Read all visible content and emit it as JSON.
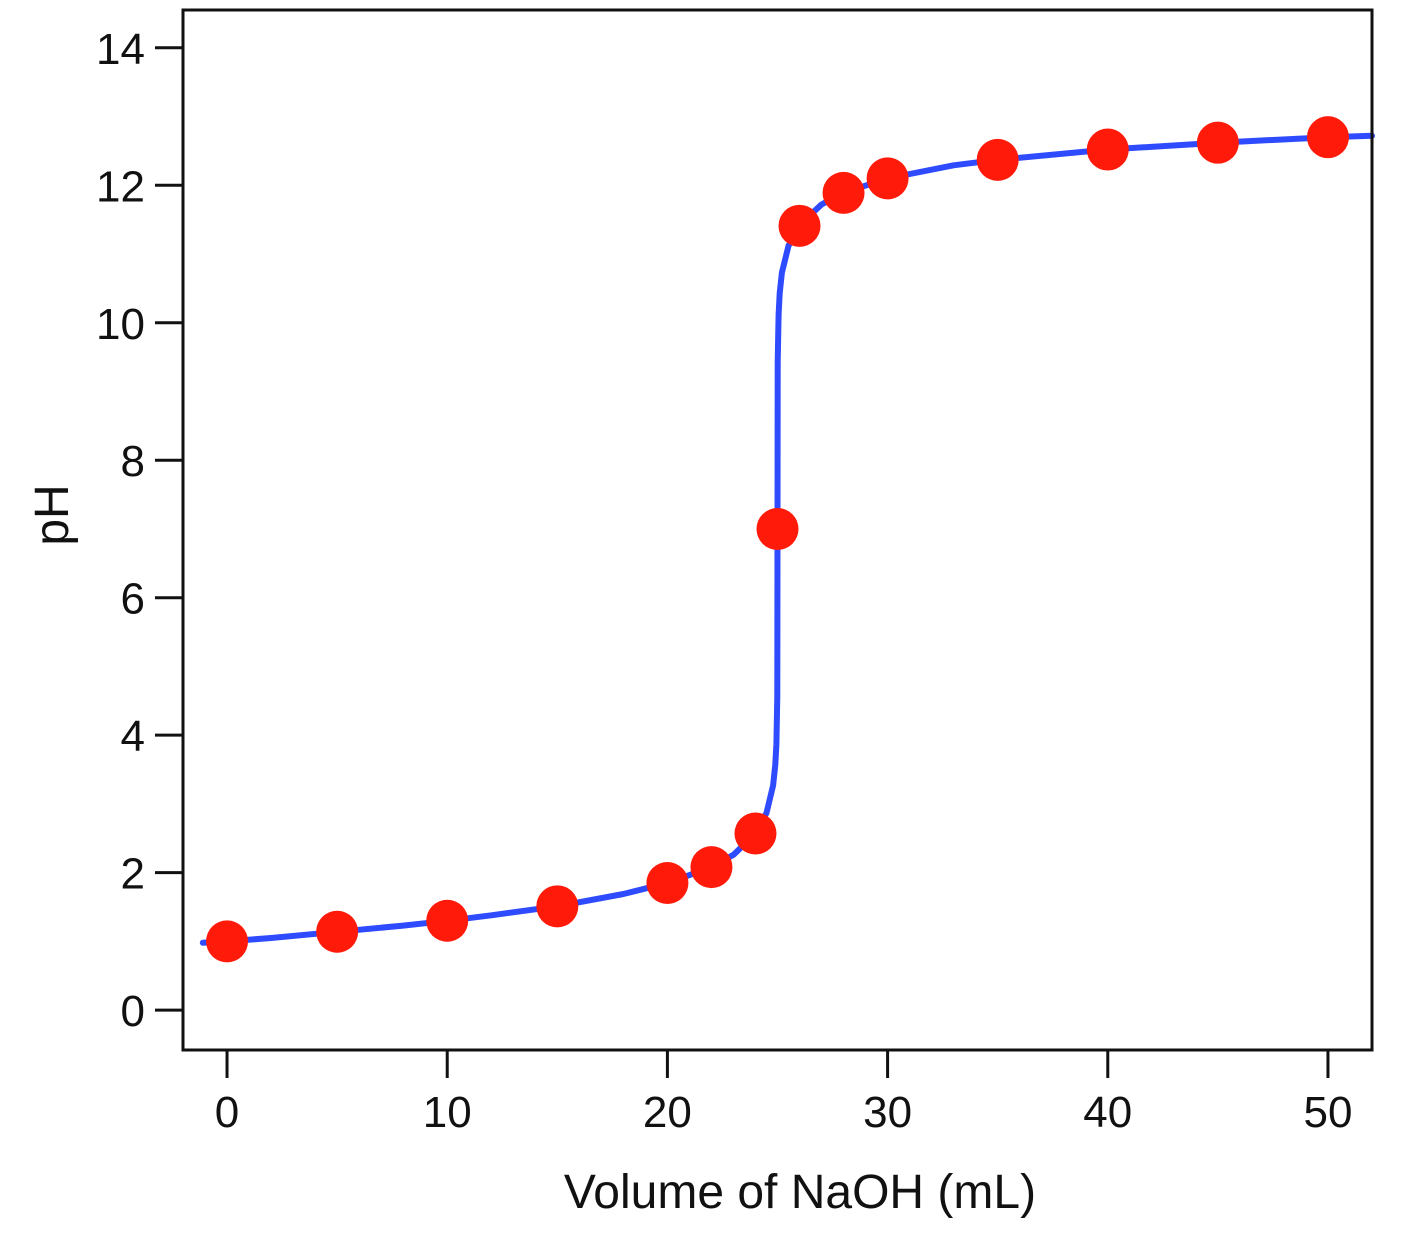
{
  "chart_data": {
    "type": "scatter",
    "title": "",
    "xlabel": "Volume of NaOH (mL)",
    "ylabel": "pH",
    "xlim": [
      -2,
      52
    ],
    "ylim": [
      -0.58,
      14.55
    ],
    "xticks": [
      0,
      10,
      20,
      30,
      40,
      50
    ],
    "yticks": [
      0,
      2,
      4,
      6,
      8,
      10,
      12,
      14
    ],
    "xtick_labels": [
      "0",
      "10",
      "20",
      "30",
      "40",
      "50"
    ],
    "ytick_labels": [
      "0",
      "2",
      "4",
      "6",
      "8",
      "10",
      "12",
      "14"
    ],
    "grid": false,
    "legend": "none",
    "series": [
      {
        "name": "titration curve",
        "kind": "line",
        "color": "#2f4bff",
        "x": [
          -1.1,
          0,
          2,
          5,
          8,
          10,
          12,
          15,
          18,
          20,
          22,
          23,
          24,
          24.5,
          24.8,
          24.9,
          24.95,
          24.99,
          25,
          25.01,
          25.05,
          25.1,
          25.2,
          25.5,
          26,
          27,
          28,
          30,
          33,
          35,
          40,
          45,
          50,
          52
        ],
        "y": [
          0.98,
          1.0,
          1.05,
          1.14,
          1.23,
          1.3,
          1.38,
          1.51,
          1.69,
          1.85,
          2.08,
          2.26,
          2.57,
          2.87,
          3.27,
          3.57,
          3.87,
          4.57,
          7.0,
          9.43,
          10.12,
          10.43,
          10.73,
          11.12,
          11.42,
          11.72,
          11.89,
          12.1,
          12.29,
          12.37,
          12.52,
          12.62,
          12.7,
          12.72
        ]
      },
      {
        "name": "measured points",
        "kind": "scatter",
        "color": "#ff1a0a",
        "x": [
          0,
          5,
          10,
          15,
          20,
          22,
          24,
          25,
          26,
          28,
          30,
          35,
          40,
          45,
          50
        ],
        "y": [
          1.0,
          1.14,
          1.3,
          1.51,
          1.85,
          2.08,
          2.57,
          7.0,
          11.41,
          11.89,
          12.1,
          12.37,
          12.52,
          12.62,
          12.7
        ]
      }
    ]
  }
}
